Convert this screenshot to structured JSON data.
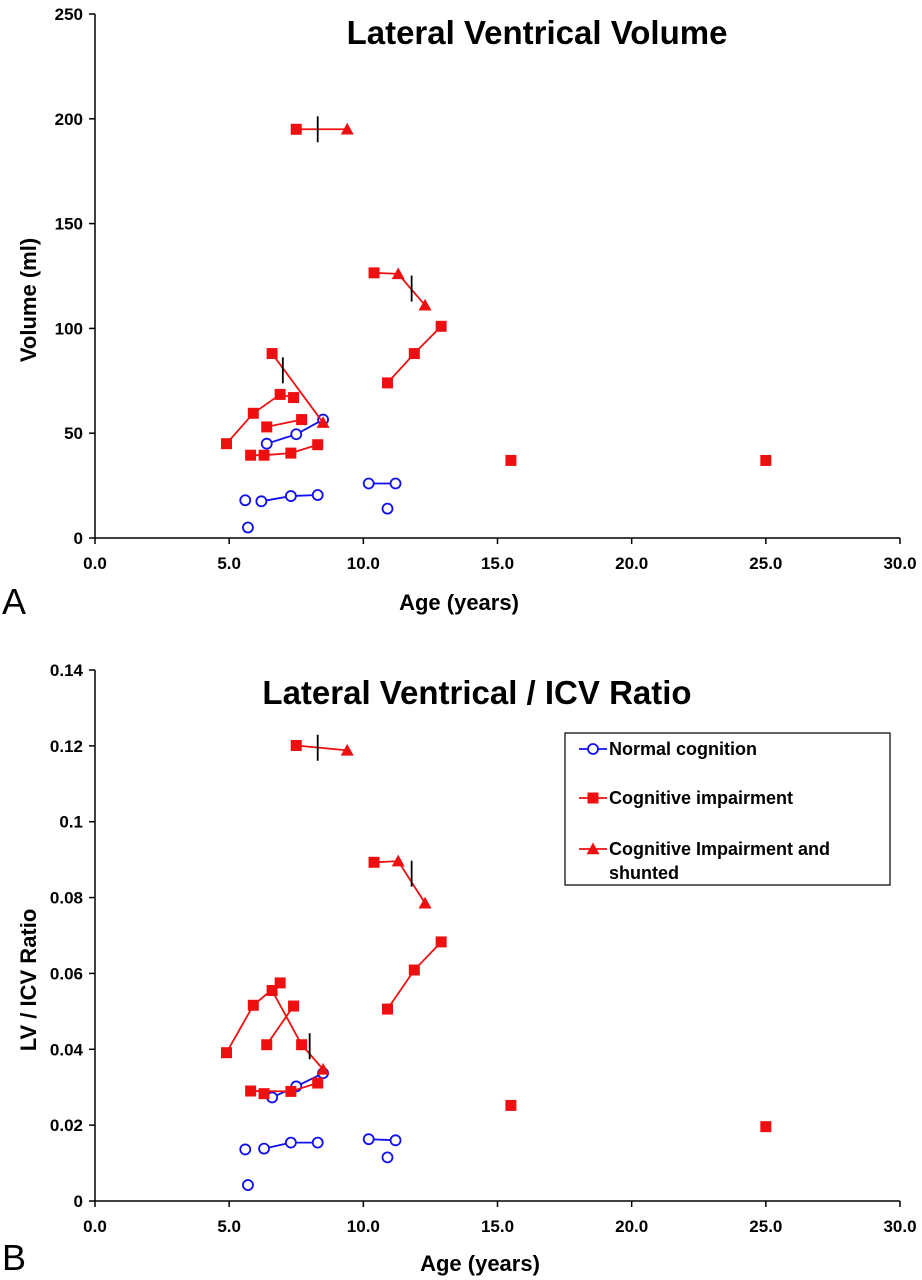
{
  "colors": {
    "normal": "#1010ee",
    "impaired": "#ee1010",
    "axis": "#000000",
    "marker_line": "#000000"
  },
  "chart_data": [
    {
      "panel_label": "A",
      "type": "line",
      "title": "Lateral Ventrical Volume",
      "xlabel": "Age (years)",
      "ylabel": "Volume (ml)",
      "xlim": [
        0,
        30
      ],
      "ylim": [
        0,
        250
      ],
      "xticks": [
        0,
        5,
        10,
        15,
        20,
        25,
        30
      ],
      "xtick_labels": [
        "0.0",
        "5.0",
        "10.0",
        "15.0",
        "20.0",
        "25.0",
        "30.0"
      ],
      "yticks": [
        0,
        50,
        100,
        150,
        200,
        250
      ],
      "ytick_labels": [
        "0",
        "50",
        "100",
        "150",
        "200",
        "250"
      ],
      "grid": false,
      "series": [
        {
          "group": "normal",
          "points": [
            [
              6.4,
              45
            ],
            [
              7.5,
              49.5
            ],
            [
              8.5,
              56.5
            ]
          ]
        },
        {
          "group": "normal",
          "points": [
            [
              6.2,
              17.5
            ],
            [
              7.3,
              20
            ],
            [
              8.3,
              20.5
            ]
          ]
        },
        {
          "group": "normal",
          "points": [
            [
              10.2,
              26
            ],
            [
              11.2,
              26
            ]
          ]
        },
        {
          "group": "normal",
          "points": [
            [
              5.6,
              18
            ]
          ]
        },
        {
          "group": "normal",
          "points": [
            [
              5.7,
              5
            ]
          ]
        },
        {
          "group": "normal",
          "points": [
            [
              10.9,
              14
            ]
          ]
        },
        {
          "group": "impaired",
          "points": [
            [
              7.5,
              195
            ],
            [
              9.4,
              "195"
            ]
          ],
          "markers": [
            "square",
            "triangle"
          ]
        },
        {
          "group": "impaired",
          "points": [
            [
              10.4,
              126.5
            ],
            [
              11.3,
              126
            ],
            [
              12.3,
              111
            ]
          ],
          "markers": [
            "square",
            "triangle",
            "triangle"
          ]
        },
        {
          "group": "impaired",
          "points": [
            [
              10.9,
              74
            ],
            [
              11.9,
              88
            ],
            [
              12.9,
              101
            ]
          ]
        },
        {
          "group": "impaired",
          "points": [
            [
              6.6,
              88
            ],
            [
              8.5,
              55
            ]
          ],
          "markers": [
            "square",
            "triangle"
          ]
        },
        {
          "group": "impaired",
          "points": [
            [
              4.9,
              45
            ],
            [
              5.9,
              59.5
            ],
            [
              6.9,
              68.5
            ],
            [
              7.4,
              67
            ]
          ]
        },
        {
          "group": "impaired",
          "points": [
            [
              6.4,
              53
            ],
            [
              7.7,
              56.5
            ]
          ]
        },
        {
          "group": "impaired",
          "points": [
            [
              5.8,
              39.5
            ],
            [
              6.3,
              39.5
            ],
            [
              7.3,
              40.5
            ],
            [
              8.3,
              44.5
            ]
          ]
        },
        {
          "group": "impaired",
          "points": [
            [
              15.5,
              37
            ]
          ]
        },
        {
          "group": "impaired",
          "points": [
            [
              25,
              37
            ]
          ]
        }
      ],
      "shunt_marks": [
        [
          8.3,
          195
        ],
        [
          11.8,
          119
        ],
        [
          7.0,
          80
        ]
      ],
      "legend": null
    },
    {
      "panel_label": "B",
      "type": "line",
      "title": "Lateral Ventrical / ICV Ratio",
      "xlabel": "Age (years)",
      "ylabel": "LV / ICV Ratio",
      "xlim": [
        0,
        30
      ],
      "ylim": [
        0,
        0.14
      ],
      "xticks": [
        0,
        5,
        10,
        15,
        20,
        25,
        30
      ],
      "xtick_labels": [
        "0.0",
        "5.0",
        "10.0",
        "15.0",
        "20.0",
        "25.0",
        "30.0"
      ],
      "yticks": [
        0,
        0.02,
        0.04,
        0.06,
        0.08,
        0.1,
        0.12,
        0.14
      ],
      "ytick_labels": [
        "0",
        "0.02",
        "0.04",
        "0.06",
        "0.08",
        "0.1",
        "0.12",
        "0.14"
      ],
      "grid": false,
      "series": [
        {
          "group": "normal",
          "points": [
            [
              6.6,
              0.0273
            ],
            [
              7.5,
              0.0302
            ],
            [
              8.5,
              0.0337
            ]
          ]
        },
        {
          "group": "normal",
          "points": [
            [
              6.3,
              0.0138
            ],
            [
              7.3,
              0.0154
            ],
            [
              8.3,
              0.0154
            ]
          ]
        },
        {
          "group": "normal",
          "points": [
            [
              10.2,
              0.0163
            ],
            [
              11.2,
              0.016
            ]
          ]
        },
        {
          "group": "normal",
          "points": [
            [
              5.6,
              0.0136
            ]
          ]
        },
        {
          "group": "normal",
          "points": [
            [
              5.7,
              0.0042
            ]
          ]
        },
        {
          "group": "normal",
          "points": [
            [
              10.9,
              0.0115
            ]
          ]
        },
        {
          "group": "impaired",
          "points": [
            [
              7.5,
              0.1201
            ],
            [
              9.4,
              0.1188
            ]
          ],
          "markers": [
            "square",
            "triangle"
          ]
        },
        {
          "group": "impaired",
          "points": [
            [
              10.4,
              0.0893
            ],
            [
              11.3,
              0.0896
            ],
            [
              12.3,
              0.0785
            ]
          ],
          "markers": [
            "square",
            "triangle",
            "triangle"
          ]
        },
        {
          "group": "impaired",
          "points": [
            [
              10.9,
              0.0506
            ],
            [
              11.9,
              0.0609
            ],
            [
              12.9,
              0.0683
            ]
          ]
        },
        {
          "group": "impaired",
          "points": [
            [
              4.9,
              0.0391
            ],
            [
              5.9,
              0.0516
            ],
            [
              6.9,
              0.0575
            ]
          ]
        },
        {
          "group": "impaired",
          "points": [
            [
              6.6,
              0.0555
            ],
            [
              7.7,
              0.0412
            ],
            [
              8.5,
              0.0347
            ]
          ],
          "markers": [
            "square",
            "square",
            "triangle"
          ]
        },
        {
          "group": "impaired",
          "points": [
            [
              6.4,
              0.0412
            ],
            [
              7.4,
              0.0514
            ]
          ]
        },
        {
          "group": "impaired",
          "points": [
            [
              5.8,
              0.029
            ],
            [
              7.3,
              0.0289
            ],
            [
              8.3,
              0.0311
            ]
          ]
        },
        {
          "group": "impaired",
          "points": [
            [
              6.3,
              0.0283
            ]
          ]
        },
        {
          "group": "impaired",
          "points": [
            [
              15.5,
              0.0252
            ]
          ]
        },
        {
          "group": "impaired",
          "points": [
            [
              25,
              0.0196
            ]
          ]
        }
      ],
      "shunt_marks": [
        [
          8.3,
          0.1195
        ],
        [
          11.8,
          0.0863
        ],
        [
          8.0,
          0.0408
        ]
      ],
      "legend": {
        "placement": "top-right",
        "entries": [
          {
            "label": "Normal cognition",
            "group": "normal",
            "marker": "circle"
          },
          {
            "label": "Cognitive impairment",
            "group": "impaired",
            "marker": "square"
          },
          {
            "label_lines": [
              "Cognitive Impairment and",
              "shunted"
            ],
            "group": "impaired",
            "marker": "triangle"
          }
        ]
      }
    }
  ]
}
